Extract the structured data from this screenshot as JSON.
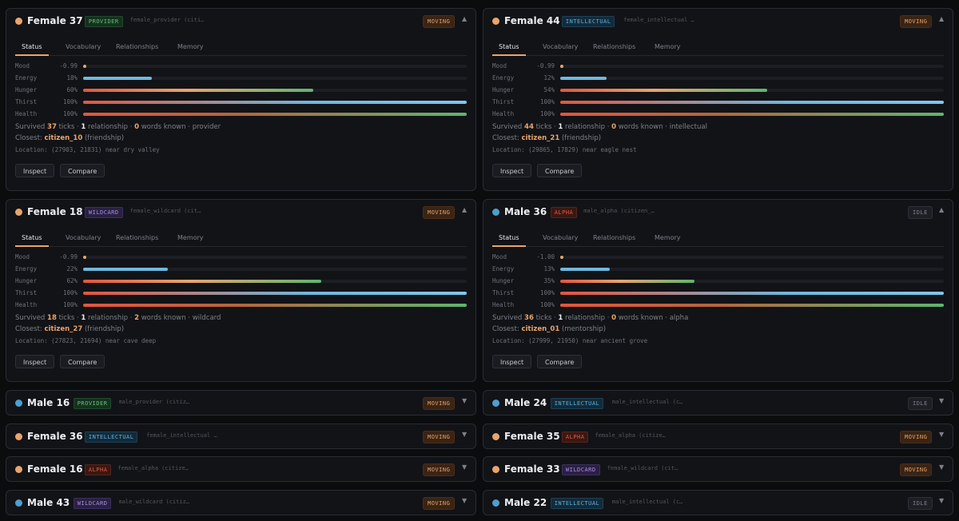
{
  "tabs": [
    "Status",
    "Vocabulary",
    "Relationships",
    "Memory"
  ],
  "bar_labels": [
    "Mood",
    "Energy",
    "Hunger",
    "Thirst",
    "Health"
  ],
  "buttons": {
    "inspect": "Inspect",
    "compare": "Compare"
  },
  "summary_text": {
    "survived": "Survived",
    "ticks": "ticks",
    "relationship": "relationship",
    "words": "words known",
    "closest": "Closest:",
    "location": "Location:"
  },
  "expanded": [
    {
      "name": "Female 37",
      "sex": "female",
      "role": "PROVIDER",
      "role_class": "provider",
      "ident": "female_provider (citi…",
      "state": "MOVING",
      "bars": {
        "mood": "-0.99",
        "energy": "18%",
        "hunger": "60%",
        "thirst": "100%",
        "health": "100%"
      },
      "levels": {
        "energy": 18,
        "hunger": 60,
        "thirst": 100,
        "health": 100
      },
      "ticks": "37",
      "relationships": "1",
      "words": "0",
      "archetype": "provider",
      "closest": "citizen_10",
      "relation": "(friendship)",
      "location": "Location: (27903, 21831) near dry valley"
    },
    {
      "name": "Female 44",
      "sex": "female",
      "role": "INTELLECTUAL",
      "role_class": "intellectual",
      "ident": "female_intellectual …",
      "state": "MOVING",
      "bars": {
        "mood": "-0.99",
        "energy": "12%",
        "hunger": "54%",
        "thirst": "100%",
        "health": "100%"
      },
      "levels": {
        "energy": 12,
        "hunger": 54,
        "thirst": 100,
        "health": 100
      },
      "ticks": "44",
      "relationships": "1",
      "words": "0",
      "archetype": "intellectual",
      "closest": "citizen_21",
      "relation": "(friendship)",
      "location": "Location: (29865, 17829) near eagle nest"
    },
    {
      "name": "Female 18",
      "sex": "female",
      "role": "WILDCARD",
      "role_class": "wildcard",
      "ident": "female_wildcard (cit…",
      "state": "MOVING",
      "bars": {
        "mood": "-0.99",
        "energy": "22%",
        "hunger": "62%",
        "thirst": "100%",
        "health": "100%"
      },
      "levels": {
        "energy": 22,
        "hunger": 62,
        "thirst": 100,
        "health": 100
      },
      "ticks": "18",
      "relationships": "1",
      "words": "2",
      "archetype": "wildcard",
      "closest": "citizen_27",
      "relation": "(friendship)",
      "location": "Location: (27823, 21694) near cave deep"
    },
    {
      "name": "Male 36",
      "sex": "male",
      "role": "ALPHA",
      "role_class": "alpha",
      "ident": "male_alpha (citizen_…",
      "state": "IDLE",
      "bars": {
        "mood": "-1.00",
        "energy": "13%",
        "hunger": "35%",
        "thirst": "100%",
        "health": "100%"
      },
      "levels": {
        "energy": 13,
        "hunger": 35,
        "thirst": 100,
        "health": 100
      },
      "ticks": "36",
      "relationships": "1",
      "words": "0",
      "archetype": "alpha",
      "closest": "citizen_01",
      "relation": "(mentorship)",
      "location": "Location: (27999, 21950) near ancient grove"
    }
  ],
  "collapsed": [
    {
      "name": "Male 16",
      "sex": "male",
      "role": "PROVIDER",
      "role_class": "provider",
      "ident": "male_provider (citiz…",
      "state": "MOVING"
    },
    {
      "name": "Male 24",
      "sex": "male",
      "role": "INTELLECTUAL",
      "role_class": "intellectual",
      "ident": "male_intellectual (c…",
      "state": "IDLE"
    },
    {
      "name": "Female 36",
      "sex": "female",
      "role": "INTELLECTUAL",
      "role_class": "intellectual",
      "ident": "female_intellectual …",
      "state": "MOVING"
    },
    {
      "name": "Female 35",
      "sex": "female",
      "role": "ALPHA",
      "role_class": "alpha",
      "ident": "female_alpha (citize…",
      "state": "MOVING"
    },
    {
      "name": "Female 16",
      "sex": "female",
      "role": "ALPHA",
      "role_class": "alpha",
      "ident": "female_alpha (citize…",
      "state": "MOVING"
    },
    {
      "name": "Female 33",
      "sex": "female",
      "role": "WILDCARD",
      "role_class": "wildcard",
      "ident": "female_wildcard (cit…",
      "state": "MOVING"
    },
    {
      "name": "Male 43",
      "sex": "male",
      "role": "WILDCARD",
      "role_class": "wildcard",
      "ident": "male_wildcard (citiz…",
      "state": "MOVING"
    },
    {
      "name": "Male 22",
      "sex": "male",
      "role": "INTELLECTUAL",
      "role_class": "intellectual",
      "ident": "male_intellectual (c…",
      "state": "IDLE"
    }
  ],
  "icons": {
    "expand": "chevron-up-icon",
    "collapse": "chevron-down-icon"
  },
  "colors": {
    "female": "#e8a56c",
    "male": "#4d9fce",
    "accent": "#e8a56c"
  }
}
